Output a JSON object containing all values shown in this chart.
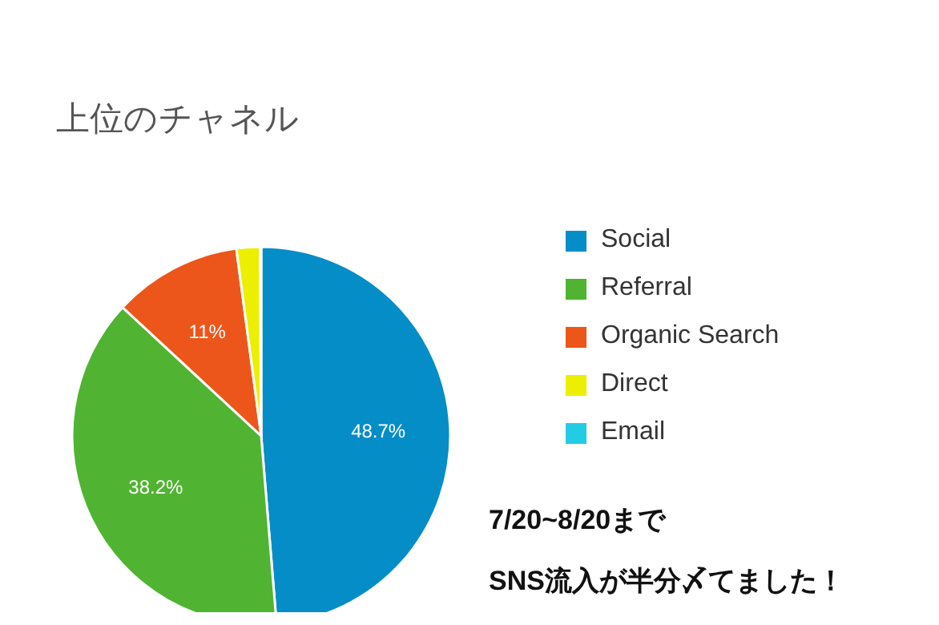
{
  "chart_data": {
    "type": "pie",
    "title": "上位のチャネル",
    "categories": [
      "Social",
      "Referral",
      "Organic Search",
      "Direct",
      "Email"
    ],
    "values": [
      48.7,
      38.2,
      11,
      2.0,
      0.1
    ],
    "colors": [
      "#058dc7",
      "#50b432",
      "#ed561b",
      "#edef00",
      "#24cbe5"
    ],
    "value_labels": [
      "48.7%",
      "38.2%",
      "11%",
      null,
      null
    ],
    "legend": "right",
    "annotations": [
      "7/20~8/20まで",
      "SNS流入が半分〆てました！"
    ]
  }
}
